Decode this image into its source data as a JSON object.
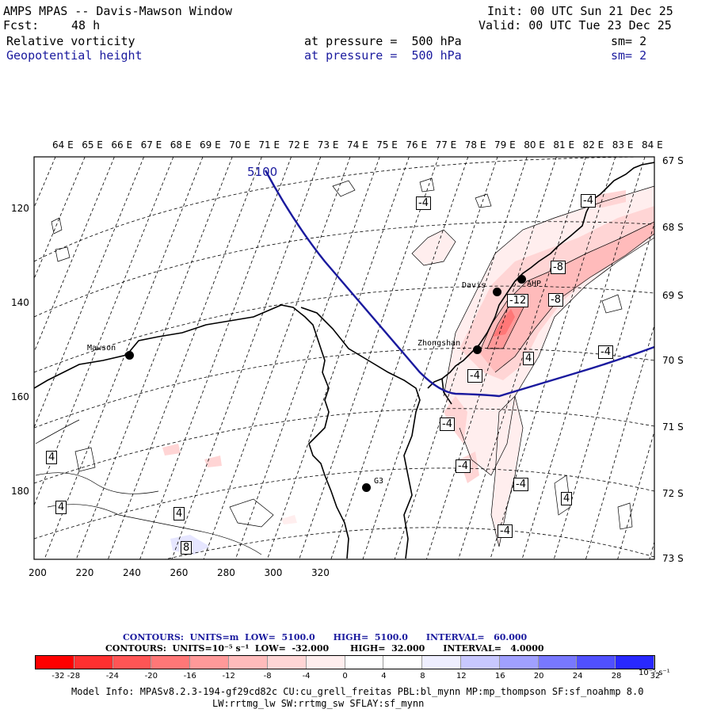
{
  "header": {
    "title": "AMPS MPAS -- Davis-Mawson Window",
    "init": "Init: 00 UTC Sun 21 Dec 25",
    "fcst_label": "Fcst:",
    "fcst_value": "48 h",
    "valid": "Valid: 00 UTC Tue 23 Dec 25",
    "field1": "Relative vorticity",
    "field1_pressure": "at pressure =  500 hPa",
    "field1_sm": "sm= 2",
    "field2": "Geopotential height",
    "field2_pressure": "at pressure =  500 hPa",
    "field2_sm": "sm= 2"
  },
  "map": {
    "lon_labels": [
      "64 E",
      "65 E",
      "66 E",
      "67 E",
      "68 E",
      "69 E",
      "70 E",
      "71 E",
      "72 E",
      "73 E",
      "74 E",
      "75 E",
      "76 E",
      "77 E",
      "78 E",
      "79 E",
      "80 E",
      "81 E",
      "82 E",
      "83 E",
      "84 E"
    ],
    "lat_labels": [
      "67 S",
      "68 S",
      "69 S",
      "70 S",
      "71 S",
      "72 S",
      "73 S"
    ],
    "y_ticks": [
      "120",
      "140",
      "160",
      "180"
    ],
    "x_ticks": [
      "200",
      "220",
      "240",
      "260",
      "280",
      "300",
      "320"
    ],
    "height_contour_label": "5100",
    "stations": [
      {
        "name": "Mawson"
      },
      {
        "name": "Davis"
      },
      {
        "name": "AHP"
      },
      {
        "name": "Zhongshan"
      },
      {
        "name": "G3"
      }
    ],
    "contour_labels": [
      "-4",
      "-4",
      "-8",
      "-12",
      "-8",
      "-4",
      "4",
      "-4",
      "-4",
      "-4",
      "-4",
      "4",
      "-4",
      "4",
      "4",
      "4",
      "4",
      "8"
    ]
  },
  "contours_info": {
    "line1": "CONTOURS:  UNITS=m  LOW=  5100.0      HIGH=  5100.0      INTERVAL=   60.000",
    "line2": "CONTOURS:  UNITS=10⁻⁵ s⁻¹  LOW=  -32.000       HIGH=  32.000      INTERVAL=   4.0000"
  },
  "colorbar": {
    "labels": [
      "-32",
      "-28",
      "-24",
      "-20",
      "-16",
      "-12",
      "-8",
      "-4",
      "0",
      "4",
      "8",
      "12",
      "16",
      "20",
      "24",
      "28",
      "32"
    ],
    "units": "10⁻⁵ s⁻¹",
    "colors": [
      "#ff0000",
      "#ff3030",
      "#ff5555",
      "#ff7777",
      "#ff9999",
      "#ffbbbb",
      "#ffd5d5",
      "#ffeeee",
      "#ffffff",
      "#ffffff",
      "#eeeeff",
      "#c8c8ff",
      "#a0a0ff",
      "#7878ff",
      "#5050ff",
      "#2828ff",
      "#0000ff"
    ]
  },
  "model_info": {
    "line1": "Model Info: MPASv8.2.3-194-gf29cd82c CU:cu_grell_freitas PBL:bl_mynn MP:mp_thompson SF:sf_noahmp 8.0",
    "line2": "LW:rrtmg_lw SW:rrtmg_sw SFLAY:sf_mynn"
  }
}
